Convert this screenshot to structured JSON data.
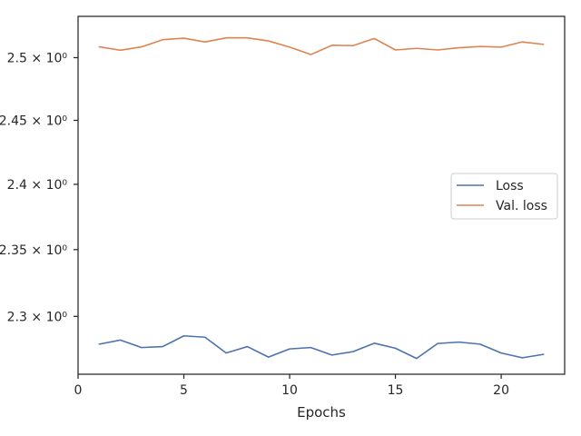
{
  "chart_data": {
    "type": "line",
    "title": "",
    "xlabel": "Epochs",
    "ylabel": "",
    "yscale": "log",
    "xlim": [
      0,
      23
    ],
    "ylim": [
      2.2575,
      2.5335
    ],
    "grid": false,
    "legend_position": "center-right",
    "x_ticks": [
      {
        "value": 0,
        "label": "0"
      },
      {
        "value": 5,
        "label": "5"
      },
      {
        "value": 10,
        "label": "10"
      },
      {
        "value": 15,
        "label": "15"
      },
      {
        "value": 20,
        "label": "20"
      }
    ],
    "y_ticks": [
      {
        "value": 2.3,
        "label": "2.3 × 10⁰"
      },
      {
        "value": 2.35,
        "label": "2.35 × 10⁰"
      },
      {
        "value": 2.4,
        "label": "2.4 × 10⁰"
      },
      {
        "value": 2.45,
        "label": "2.45 × 10⁰"
      },
      {
        "value": 2.5,
        "label": "2.5 × 10⁰"
      }
    ],
    "x": [
      1,
      2,
      3,
      4,
      5,
      6,
      7,
      8,
      9,
      10,
      11,
      12,
      13,
      14,
      15,
      16,
      17,
      18,
      19,
      20,
      21,
      22
    ],
    "series": [
      {
        "name": "Loss",
        "color": "#4c72b0",
        "values": [
          2.2795,
          2.2825,
          2.277,
          2.2777,
          2.2856,
          2.2846,
          2.273,
          2.2777,
          2.27,
          2.276,
          2.277,
          2.2715,
          2.274,
          2.2802,
          2.2765,
          2.269,
          2.28,
          2.281,
          2.2795,
          2.273,
          2.2695,
          2.272
        ]
      },
      {
        "name": "Val. loss",
        "color": "#dd8452",
        "values": [
          2.5087,
          2.506,
          2.5087,
          2.5145,
          2.5157,
          2.5127,
          2.516,
          2.516,
          2.5135,
          2.5085,
          2.5025,
          2.51,
          2.5097,
          2.5155,
          2.5062,
          2.5075,
          2.5062,
          2.508,
          2.509,
          2.5085,
          2.5127,
          2.5107
        ]
      }
    ]
  }
}
